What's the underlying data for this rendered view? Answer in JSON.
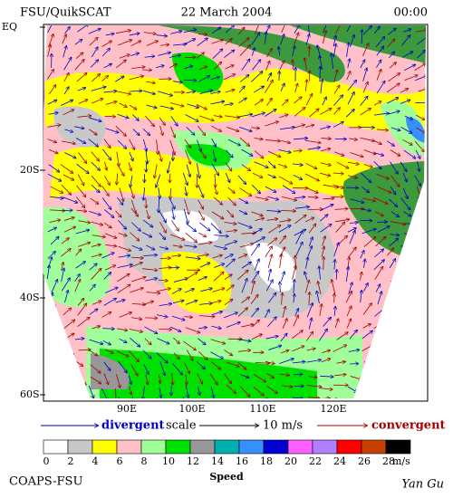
{
  "header": {
    "left": "FSU/QuikSCAT",
    "center": "22 March 2004",
    "right": "00:00"
  },
  "map": {
    "lat_labels": [
      "EQ",
      "20S",
      "40S",
      "60S"
    ],
    "lon_labels": [
      "90E",
      "100E",
      "110E",
      "120E"
    ]
  },
  "legend": {
    "divergent": "divergent",
    "scale": "scale",
    "scale_value": "10 m/s",
    "convergent": "convergent"
  },
  "colorbar": {
    "ticks": [
      0,
      2,
      4,
      6,
      8,
      10,
      12,
      14,
      16,
      18,
      20,
      22,
      24,
      26,
      28
    ],
    "colors": [
      "#ffffff",
      "#c8c8c8",
      "#ffff00",
      "#ffc0c8",
      "#a0ff98",
      "#00e000",
      "#989898",
      "#00b0b0",
      "#3890ff",
      "#0000d0",
      "#ff60ff",
      "#b080ff",
      "#ff0000",
      "#c84000",
      "#000000"
    ],
    "unit": "m/s",
    "label": "Speed"
  },
  "footer": {
    "left": "COAPS-FSU",
    "right": "Yan Gu"
  }
}
